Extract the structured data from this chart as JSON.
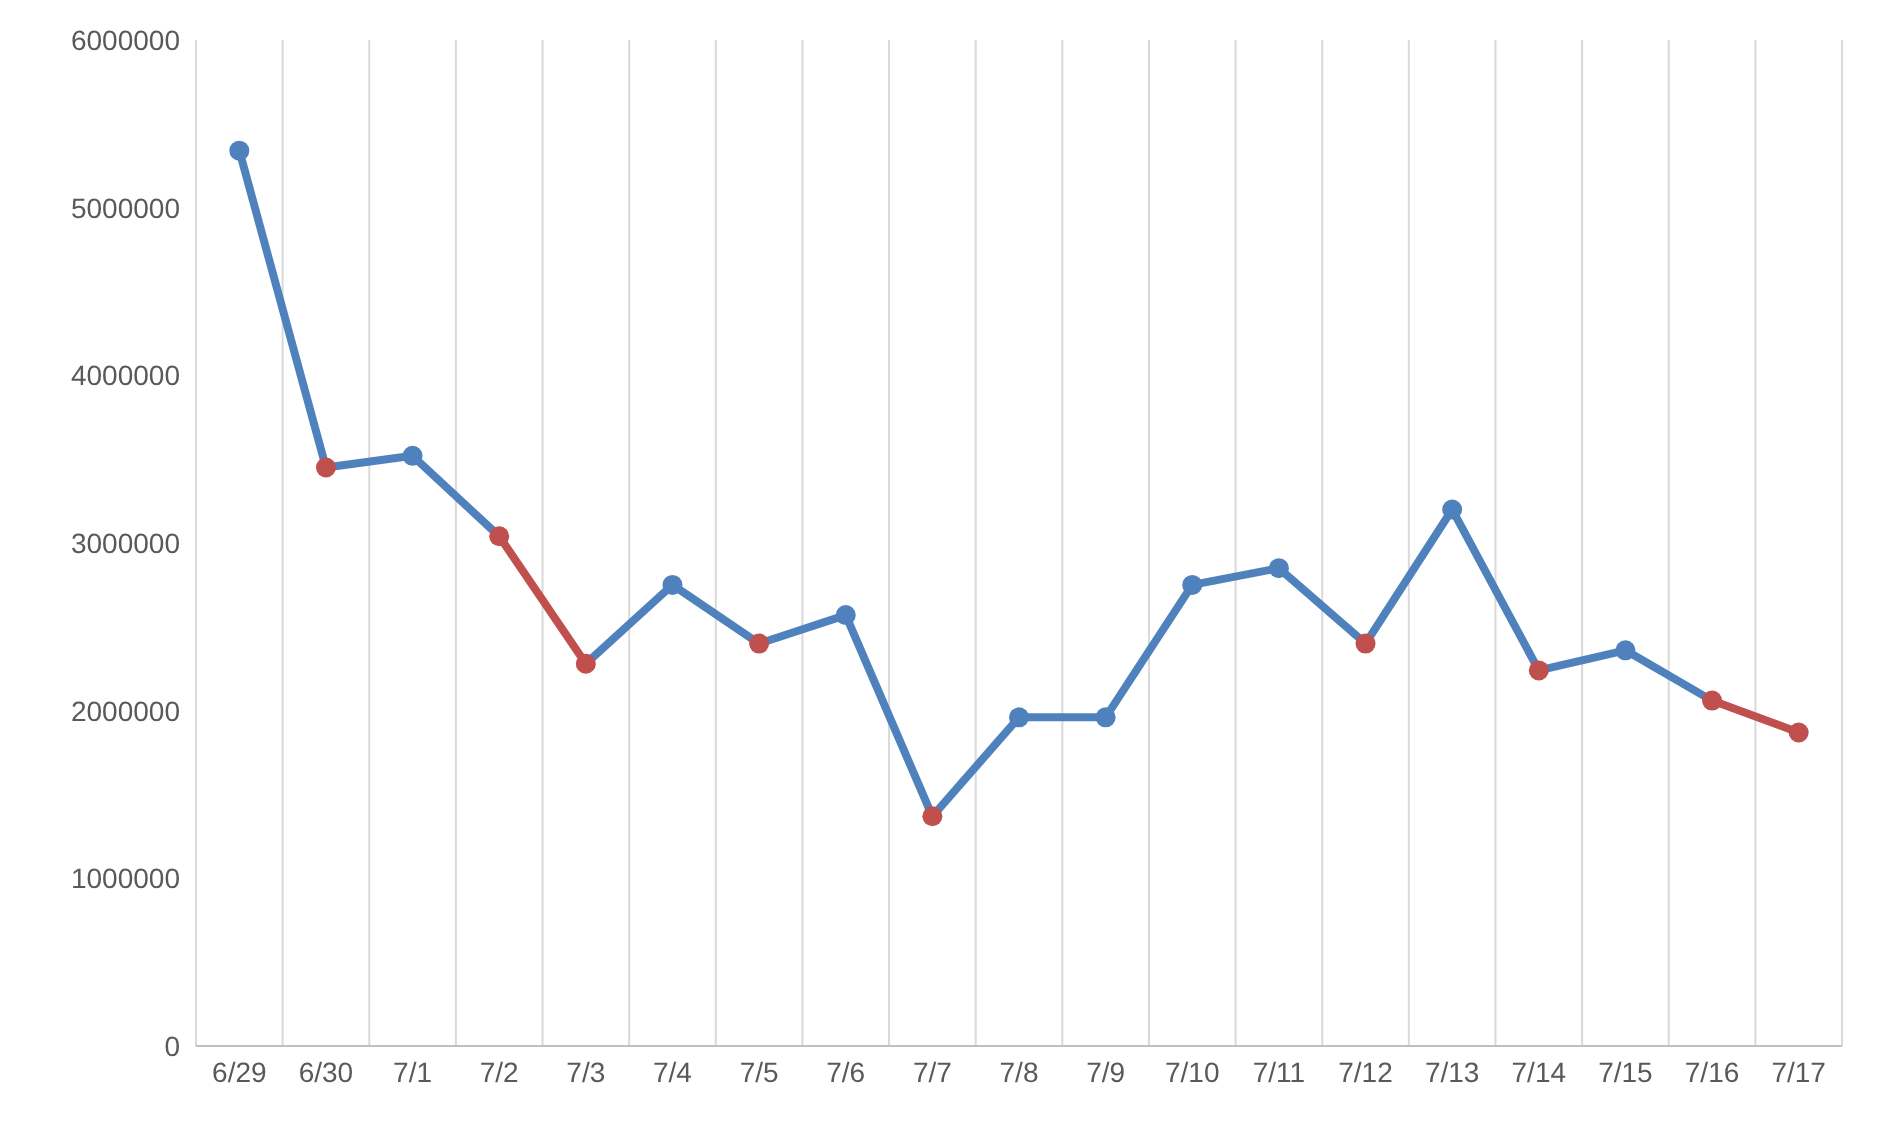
{
  "chart_data": {
    "type": "line",
    "categories": [
      "6/29",
      "6/30",
      "7/1",
      "7/2",
      "7/3",
      "7/4",
      "7/5",
      "7/6",
      "7/7",
      "7/8",
      "7/9",
      "7/10",
      "7/11",
      "7/12",
      "7/13",
      "7/14",
      "7/15",
      "7/16",
      "7/17"
    ],
    "series": [
      {
        "color": "#4f81bd",
        "values": [
          5340000,
          3450000,
          3520000,
          3040000,
          2280000,
          2750000,
          2400000,
          2570000,
          1370000,
          1960000,
          1960000,
          2750000,
          2850000,
          2400000,
          3200000,
          2240000,
          2360000,
          2060000,
          1870000
        ],
        "colors": [
          "#4f81bd",
          "#c0504d",
          "#4f81bd",
          "#c0504d",
          "#c0504d",
          "#4f81bd",
          "#c0504d",
          "#4f81bd",
          "#c0504d",
          "#4f81bd",
          "#4f81bd",
          "#4f81bd",
          "#4f81bd",
          "#c0504d",
          "#4f81bd",
          "#c0504d",
          "#4f81bd",
          "#c0504d",
          "#c0504d"
        ]
      }
    ],
    "ylim": [
      0,
      6000000
    ],
    "yticks": [
      0,
      1000000,
      2000000,
      3000000,
      4000000,
      5000000,
      6000000
    ],
    "grid": "x",
    "marker": "circle",
    "line_style": "solid"
  }
}
